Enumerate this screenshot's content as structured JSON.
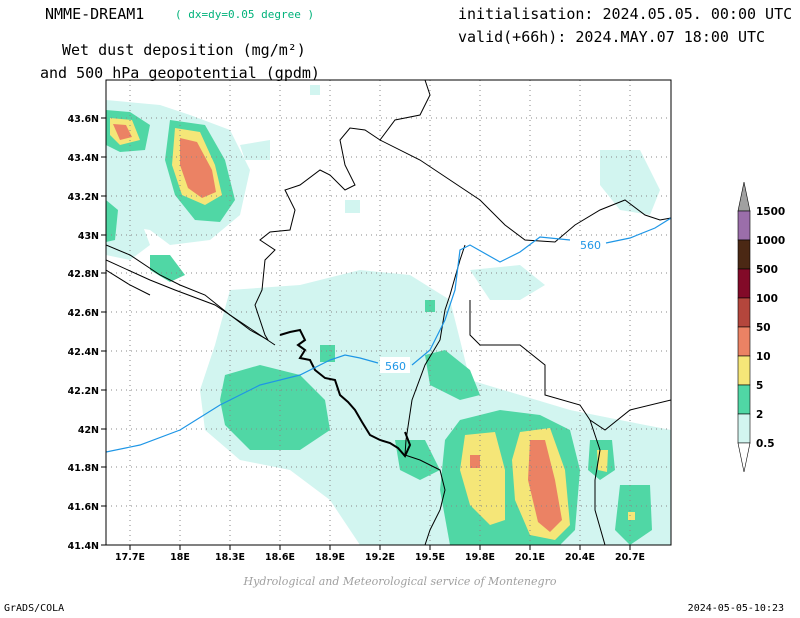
{
  "header": {
    "model_name": "NMME-DREAM1",
    "resolution": "( dx=dy=0.05 degree )",
    "field_title_line1": "Wet dust deposition (mg/m²)",
    "field_title_line2": "and 500 hPa geopotential (gpdm)",
    "init_line": "initialisation: 2024.05.05. 00:00 UTC",
    "valid_line": "valid(+66h): 2024.MAY.07 18:00 UTC"
  },
  "map": {
    "lon_labels": [
      "17.7E",
      "18E",
      "18.3E",
      "18.6E",
      "18.9E",
      "19.2E",
      "19.5E",
      "19.8E",
      "20.1E",
      "20.4E",
      "20.7E"
    ],
    "lat_labels": [
      "43.6N",
      "43.4N",
      "43.2N",
      "43N",
      "42.8N",
      "42.6N",
      "42.4N",
      "42.2N",
      "42N",
      "41.8N",
      "41.6N",
      "41.4N"
    ],
    "contour_labels": [
      "560",
      "560"
    ],
    "geopotential_color": "#1e96e6"
  },
  "legend": {
    "levels": [
      "1500",
      "1000",
      "500",
      "100",
      "50",
      "10",
      "5",
      "2",
      "0.5"
    ],
    "colors": {
      "c0_5": "#d2f5f0",
      "c2": "#50d7a5",
      "c5": "#f5e678",
      "c10": "#eb8264",
      "c50": "#b4463c",
      "c100": "#820a28",
      "c500": "#4b2814",
      "c1000": "#9b6eaa",
      "c1500": "#a0a0a0"
    }
  },
  "footer": {
    "credit": "Hydrological and Meteorological service of Montenegro",
    "software": "GrADS/COLA",
    "timestamp": "2024-05-05-10:23"
  }
}
